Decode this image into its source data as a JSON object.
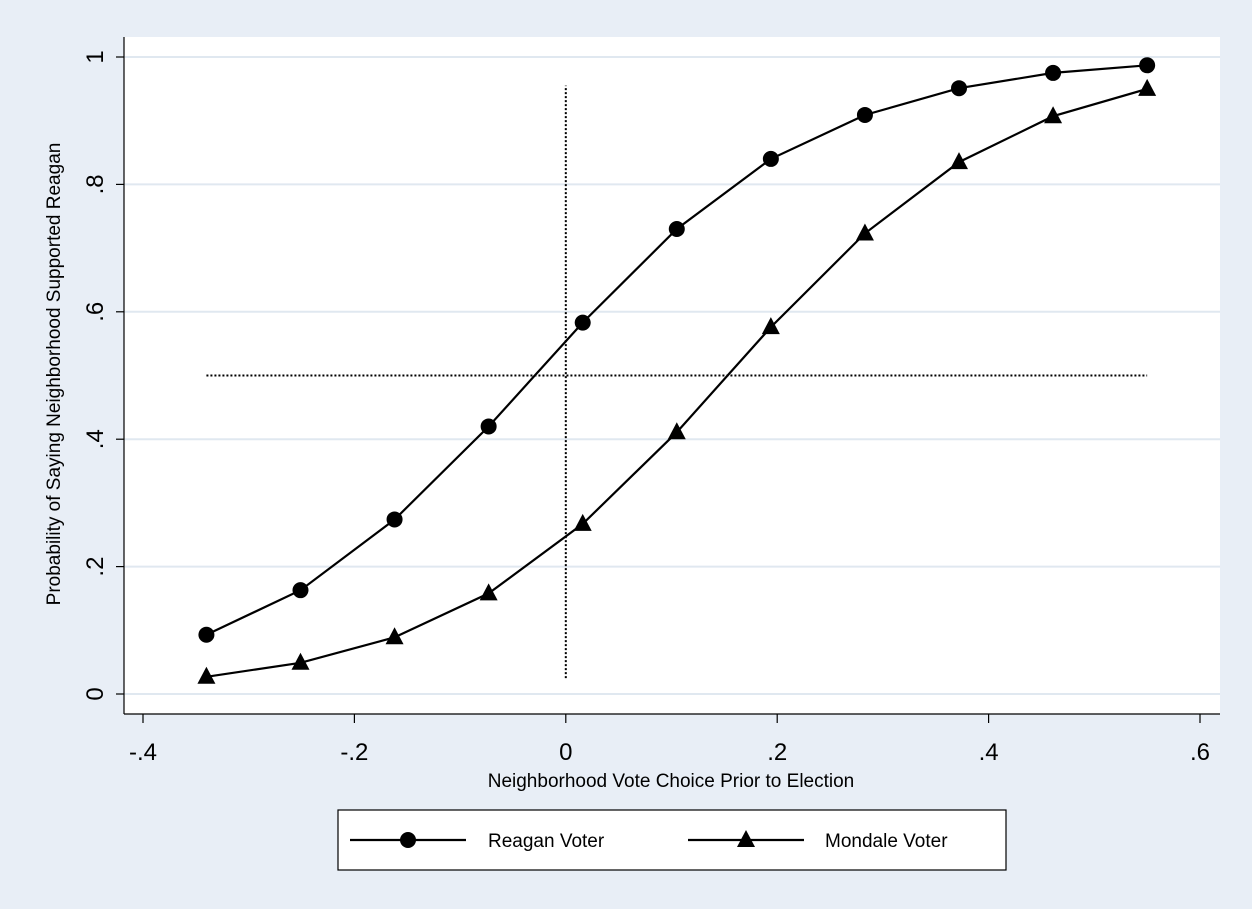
{
  "chart_data": {
    "type": "line",
    "xlabel": "Neighborhood Vote Choice Prior to Election",
    "ylabel": "Probability of Saying Neighborhood Supported Reagan",
    "xlim": [
      -0.4,
      0.6
    ],
    "ylim": [
      0,
      1
    ],
    "x_ticks": [
      -0.4,
      -0.2,
      0,
      0.2,
      0.4,
      0.6
    ],
    "x_tick_labels": [
      "-.4",
      "-.2",
      "0",
      ".2",
      ".4",
      ".6"
    ],
    "y_ticks": [
      0,
      0.2,
      0.4,
      0.6,
      0.8,
      1
    ],
    "y_tick_labels": [
      "0",
      ".2",
      ".4",
      ".6",
      ".8",
      "1"
    ],
    "grid": "horizontal",
    "legend_position": "bottom",
    "series": [
      {
        "name": "Reagan Voter",
        "marker": "circle",
        "points": [
          [
            -0.34,
            0.093
          ],
          [
            -0.251,
            0.163
          ],
          [
            -0.162,
            0.274
          ],
          [
            -0.073,
            0.42
          ],
          [
            0.016,
            0.583
          ],
          [
            0.105,
            0.73
          ],
          [
            0.194,
            0.84
          ],
          [
            0.283,
            0.909
          ],
          [
            0.372,
            0.951
          ],
          [
            0.461,
            0.975
          ],
          [
            0.55,
            0.987
          ]
        ]
      },
      {
        "name": "Mondale Voter",
        "marker": "triangle",
        "points": [
          [
            -0.34,
            0.027
          ],
          [
            -0.251,
            0.049
          ],
          [
            -0.162,
            0.089
          ],
          [
            -0.073,
            0.158
          ],
          [
            0.016,
            0.267
          ],
          [
            0.105,
            0.411
          ],
          [
            0.194,
            0.576
          ],
          [
            0.283,
            0.723
          ],
          [
            0.372,
            0.835
          ],
          [
            0.461,
            0.907
          ],
          [
            0.55,
            0.95
          ]
        ]
      }
    ],
    "reference_lines": [
      {
        "orientation": "horizontal",
        "y": 0.5,
        "x_from": -0.34,
        "x_to": 0.55,
        "style": "dotted"
      },
      {
        "orientation": "vertical",
        "x": 0,
        "y_from": 0.025,
        "y_to": 0.955,
        "style": "dotted"
      }
    ]
  },
  "colors": {
    "background": "#e8eef6",
    "plot_area": "#ffffff",
    "gridline": "#e0e8f0",
    "ink": "#000000"
  }
}
